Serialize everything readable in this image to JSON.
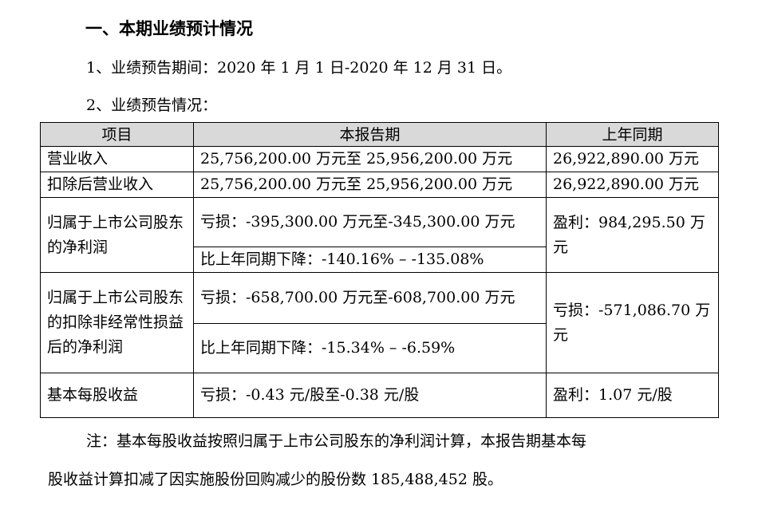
{
  "heading": "一、本期业绩预计情况",
  "period_line": "1、业绩预告期间：2020 年 1 月 1 日-2020 年 12 月 31 日。",
  "status_line": "2、业绩预告情况：",
  "table": {
    "headers": [
      "项目",
      "本报告期",
      "上年同期"
    ],
    "rows": {
      "revenue": {
        "item": "营业收入",
        "current": "25,756,200.00 万元至 25,956,200.00 万元",
        "prior": "26,922,890.00 万元"
      },
      "revenue_adj": {
        "item": "扣除后营业收入",
        "current": "25,756,200.00 万元至 25,956,200.00 万元",
        "prior": "26,922,890.00 万元"
      },
      "net_profit": {
        "item": "归属于上市公司股东的净利润",
        "current": "亏损：-395,300.00 万元至-345,300.00 万元",
        "change": "比上年同期下降：-140.16% – -135.08%",
        "prior": "盈利：984,295.50 万元"
      },
      "net_profit_adj": {
        "item": "归属于上市公司股东的扣除非经常性损益后的净利润",
        "current": "亏损：-658,700.00 万元至-608,700.00 万元",
        "change": "比上年同期下降：-15.34% – -6.59%",
        "prior": "亏损：-571,086.70 万元"
      },
      "eps": {
        "item": "基本每股收益",
        "current": "亏损：-0.43 元/股至-0.38 元/股",
        "prior": "盈利：1.07 元/股"
      }
    }
  },
  "note_line1": "注：基本每股收益按照归属于上市公司股东的净利润计算，本报告期基本每",
  "note_line2": "股收益计算扣减了因实施股份回购减少的股份数 185,488,452 股。"
}
